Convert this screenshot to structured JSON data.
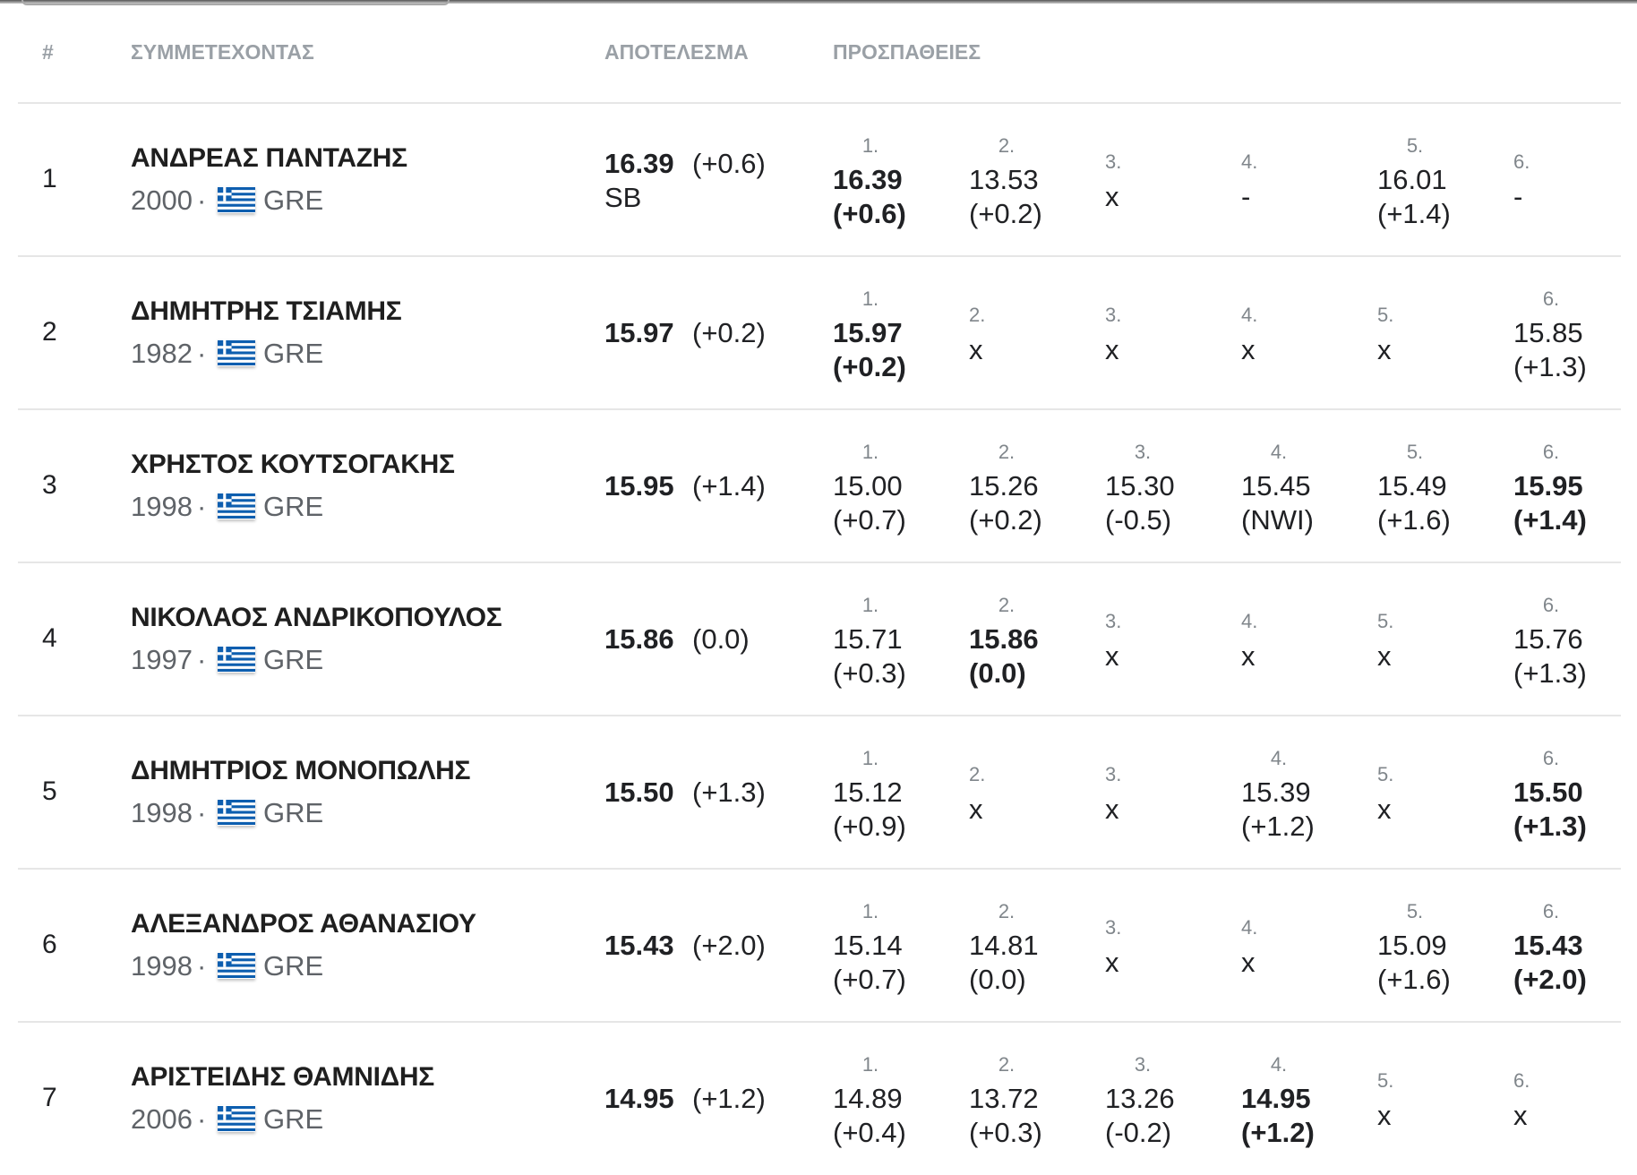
{
  "separator": "·",
  "header": {
    "rank": "#",
    "athlete": "ΣΥΜΜΕΤΕΧΟΝΤΑΣ",
    "result": "ΑΠΟΤΕΛΕΣΜΑ",
    "attempts": "ΠΡΟΣΠΑΘΕΙΕΣ"
  },
  "rows": [
    {
      "rank": "1",
      "name": "ΑΝΔΡΕΑΣ ΠΑΝΤΑΖΗΣ",
      "year": "2000",
      "country": "GRE",
      "mark": "16.39",
      "wind": "(+0.6)",
      "note": "SB",
      "attempts": [
        {
          "n": "1.",
          "mark": "16.39",
          "wind": "(+0.6)",
          "best": true
        },
        {
          "n": "2.",
          "mark": "13.53",
          "wind": "(+0.2)"
        },
        {
          "n": "3.",
          "mark": "x"
        },
        {
          "n": "4.",
          "mark": "-"
        },
        {
          "n": "5.",
          "mark": "16.01",
          "wind": "(+1.4)"
        },
        {
          "n": "6.",
          "mark": "-"
        }
      ]
    },
    {
      "rank": "2",
      "name": "ΔΗΜΗΤΡΗΣ ΤΣΙΑΜΗΣ",
      "year": "1982",
      "country": "GRE",
      "mark": "15.97",
      "wind": "(+0.2)",
      "attempts": [
        {
          "n": "1.",
          "mark": "15.97",
          "wind": "(+0.2)",
          "best": true
        },
        {
          "n": "2.",
          "mark": "x"
        },
        {
          "n": "3.",
          "mark": "x"
        },
        {
          "n": "4.",
          "mark": "x"
        },
        {
          "n": "5.",
          "mark": "x"
        },
        {
          "n": "6.",
          "mark": "15.85",
          "wind": "(+1.3)"
        }
      ]
    },
    {
      "rank": "3",
      "name": "ΧΡΗΣΤΟΣ ΚΟΥΤΣΟΓΑΚΗΣ",
      "year": "1998",
      "country": "GRE",
      "mark": "15.95",
      "wind": "(+1.4)",
      "attempts": [
        {
          "n": "1.",
          "mark": "15.00",
          "wind": "(+0.7)"
        },
        {
          "n": "2.",
          "mark": "15.26",
          "wind": "(+0.2)"
        },
        {
          "n": "3.",
          "mark": "15.30",
          "wind": "(-0.5)"
        },
        {
          "n": "4.",
          "mark": "15.45",
          "wind": "(NWI)"
        },
        {
          "n": "5.",
          "mark": "15.49",
          "wind": "(+1.6)"
        },
        {
          "n": "6.",
          "mark": "15.95",
          "wind": "(+1.4)",
          "best": true
        }
      ]
    },
    {
      "rank": "4",
      "name": "ΝΙΚΟΛΑΟΣ ΑΝΔΡΙΚΟΠΟΥΛΟΣ",
      "year": "1997",
      "country": "GRE",
      "mark": "15.86",
      "wind": "(0.0)",
      "attempts": [
        {
          "n": "1.",
          "mark": "15.71",
          "wind": "(+0.3)"
        },
        {
          "n": "2.",
          "mark": "15.86",
          "wind": "(0.0)",
          "best": true
        },
        {
          "n": "3.",
          "mark": "x"
        },
        {
          "n": "4.",
          "mark": "x"
        },
        {
          "n": "5.",
          "mark": "x"
        },
        {
          "n": "6.",
          "mark": "15.76",
          "wind": "(+1.3)"
        }
      ]
    },
    {
      "rank": "5",
      "name": "ΔΗΜΗΤΡΙΟΣ ΜΟΝΟΠΩΛΗΣ",
      "year": "1998",
      "country": "GRE",
      "mark": "15.50",
      "wind": "(+1.3)",
      "attempts": [
        {
          "n": "1.",
          "mark": "15.12",
          "wind": "(+0.9)"
        },
        {
          "n": "2.",
          "mark": "x"
        },
        {
          "n": "3.",
          "mark": "x"
        },
        {
          "n": "4.",
          "mark": "15.39",
          "wind": "(+1.2)"
        },
        {
          "n": "5.",
          "mark": "x"
        },
        {
          "n": "6.",
          "mark": "15.50",
          "wind": "(+1.3)",
          "best": true
        }
      ]
    },
    {
      "rank": "6",
      "name": "ΑΛΕΞΑΝΔΡΟΣ ΑΘΑΝΑΣΙΟΥ",
      "year": "1998",
      "country": "GRE",
      "mark": "15.43",
      "wind": "(+2.0)",
      "attempts": [
        {
          "n": "1.",
          "mark": "15.14",
          "wind": "(+0.7)"
        },
        {
          "n": "2.",
          "mark": "14.81",
          "wind": "(0.0)"
        },
        {
          "n": "3.",
          "mark": "x"
        },
        {
          "n": "4.",
          "mark": "x"
        },
        {
          "n": "5.",
          "mark": "15.09",
          "wind": "(+1.6)"
        },
        {
          "n": "6.",
          "mark": "15.43",
          "wind": "(+2.0)",
          "best": true
        }
      ]
    },
    {
      "rank": "7",
      "name": "ΑΡΙΣΤΕΙΔΗΣ ΘΑΜΝΙΔΗΣ",
      "year": "2006",
      "country": "GRE",
      "mark": "14.95",
      "wind": "(+1.2)",
      "attempts": [
        {
          "n": "1.",
          "mark": "14.89",
          "wind": "(+0.4)"
        },
        {
          "n": "2.",
          "mark": "13.72",
          "wind": "(+0.3)"
        },
        {
          "n": "3.",
          "mark": "13.26",
          "wind": "(-0.2)"
        },
        {
          "n": "4.",
          "mark": "14.95",
          "wind": "(+1.2)",
          "best": true
        },
        {
          "n": "5.",
          "mark": "x"
        },
        {
          "n": "6.",
          "mark": "x"
        }
      ]
    }
  ]
}
